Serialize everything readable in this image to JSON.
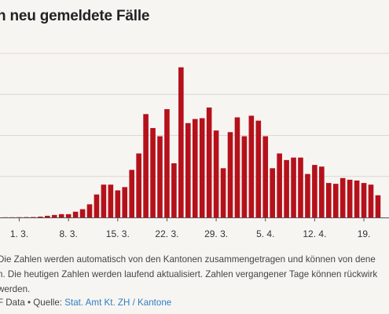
{
  "title": "n neu gemeldete Fälle",
  "note_lines": [
    "Die Zahlen werden automatisch von den Kantonen zusammengetragen und können von dene",
    "n. Die heutigen Zahlen werden laufend aktualisiert. Zahlen vergangener Tage können rückwirk",
    " werden."
  ],
  "footer": {
    "prefix": "F Data • Quelle: ",
    "source_link": "Stat. Amt Kt. ZH / Kantone"
  },
  "colors": {
    "bar": "#b5111b",
    "grid": "#dcd8d2",
    "background": "#f7f5f2"
  },
  "chart_data": {
    "type": "bar",
    "title": "n neu gemeldete Fälle",
    "xlabel": "",
    "ylabel": "",
    "tick_labels": [
      "1. 3.",
      "8. 3.",
      "15. 3.",
      "22. 3.",
      "29. 3.",
      "5. 4.",
      "12. 4.",
      "19."
    ],
    "tick_indices": [
      4,
      11,
      18,
      25,
      32,
      39,
      46,
      53
    ],
    "categories": [
      "26.2",
      "27.2",
      "28.2",
      "29.2",
      "1.3",
      "2.3",
      "3.3",
      "4.3",
      "5.3",
      "6.3",
      "7.3",
      "8.3",
      "9.3",
      "10.3",
      "11.3",
      "12.3",
      "13.3",
      "14.3",
      "15.3",
      "16.3",
      "17.3",
      "18.3",
      "19.3",
      "20.3",
      "21.3",
      "22.3",
      "23.3",
      "24.3",
      "25.3",
      "26.3",
      "27.3",
      "28.3",
      "29.3",
      "30.3",
      "31.3",
      "1.4",
      "2.4",
      "3.4",
      "4.4",
      "5.4",
      "6.4",
      "7.4",
      "8.4",
      "9.4",
      "10.4",
      "11.4",
      "12.4",
      "13.4",
      "14.4",
      "15.4",
      "16.4",
      "17.4",
      "18.4",
      "19.4",
      "20.4",
      "21.4"
    ],
    "values": [
      1,
      1,
      2,
      2,
      3,
      4,
      5,
      10,
      20,
      30,
      40,
      40,
      70,
      100,
      160,
      280,
      400,
      400,
      330,
      370,
      580,
      780,
      1260,
      1090,
      990,
      1320,
      660,
      1830,
      1150,
      1200,
      1210,
      1340,
      1060,
      600,
      1040,
      1220,
      990,
      1240,
      1180,
      990,
      600,
      780,
      700,
      730,
      730,
      530,
      640,
      620,
      420,
      410,
      480,
      460,
      450,
      420,
      400,
      270
    ],
    "ylim": [
      0,
      2000
    ],
    "gridlines": [
      500,
      1000,
      1500,
      2000
    ],
    "grid": true
  }
}
